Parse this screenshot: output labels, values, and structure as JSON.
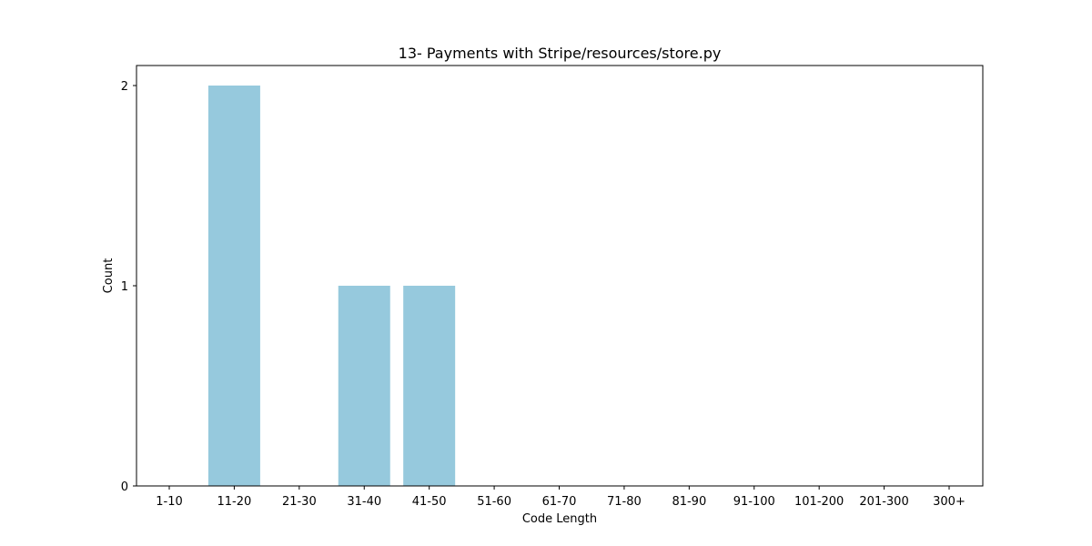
{
  "chart_data": {
    "type": "bar",
    "title": "13- Payments with Stripe/resources/store.py",
    "xlabel": "Code Length",
    "ylabel": "Count",
    "categories": [
      "1-10",
      "11-20",
      "21-30",
      "31-40",
      "41-50",
      "51-60",
      "61-70",
      "71-80",
      "81-90",
      "91-100",
      "101-200",
      "201-300",
      "300+"
    ],
    "values": [
      0,
      2,
      0,
      1,
      1,
      0,
      0,
      0,
      0,
      0,
      0,
      0,
      0
    ],
    "ylim": [
      0,
      2.1
    ],
    "yticks": [
      0,
      1,
      2
    ],
    "bar_color": "#96c9dd",
    "grid": false,
    "legend": "none"
  }
}
